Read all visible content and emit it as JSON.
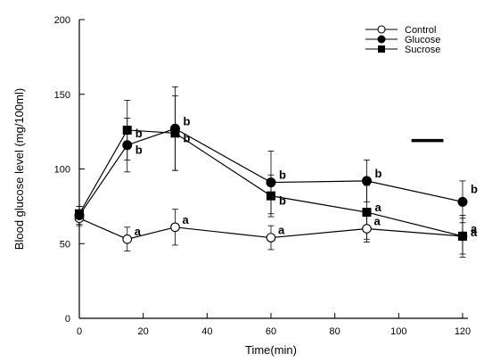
{
  "chart_data": {
    "type": "line",
    "xlabel": "Time(min)",
    "ylabel": "Blood glucose level (mg/100ml)",
    "xlim": [
      0,
      120
    ],
    "ylim": [
      0,
      200
    ],
    "xticks": [
      0,
      20,
      40,
      60,
      80,
      100,
      120
    ],
    "yticks": [
      0,
      50,
      100,
      150,
      200
    ],
    "legend_position": "top-right",
    "grid": false,
    "series": [
      {
        "name": "Control",
        "marker": "circle-open",
        "x": [
          0,
          15,
          30,
          60,
          90,
          120
        ],
        "y": [
          67,
          53,
          61,
          54,
          60,
          55
        ],
        "err": [
          5,
          8,
          12,
          8,
          9,
          12
        ],
        "labels": [
          "",
          "a",
          "a",
          "a",
          "a",
          "a"
        ]
      },
      {
        "name": "Glucose",
        "marker": "circle-filled",
        "x": [
          0,
          15,
          30,
          60,
          90,
          120
        ],
        "y": [
          69,
          116,
          127,
          91,
          92,
          78
        ],
        "err": [
          6,
          18,
          28,
          21,
          14,
          14
        ],
        "labels": [
          "",
          "b",
          "b",
          "b",
          "b",
          "b"
        ]
      },
      {
        "name": "Sucrose",
        "marker": "square-filled",
        "x": [
          0,
          15,
          30,
          60,
          90,
          120
        ],
        "y": [
          70,
          126,
          124,
          82,
          71,
          55
        ],
        "err": [
          5,
          20,
          25,
          14,
          18,
          14
        ],
        "labels": [
          "",
          "b",
          "b",
          "b",
          "a",
          "a"
        ]
      }
    ],
    "annotation_bar": {
      "x": [
        104,
        114
      ],
      "y": 119
    }
  }
}
